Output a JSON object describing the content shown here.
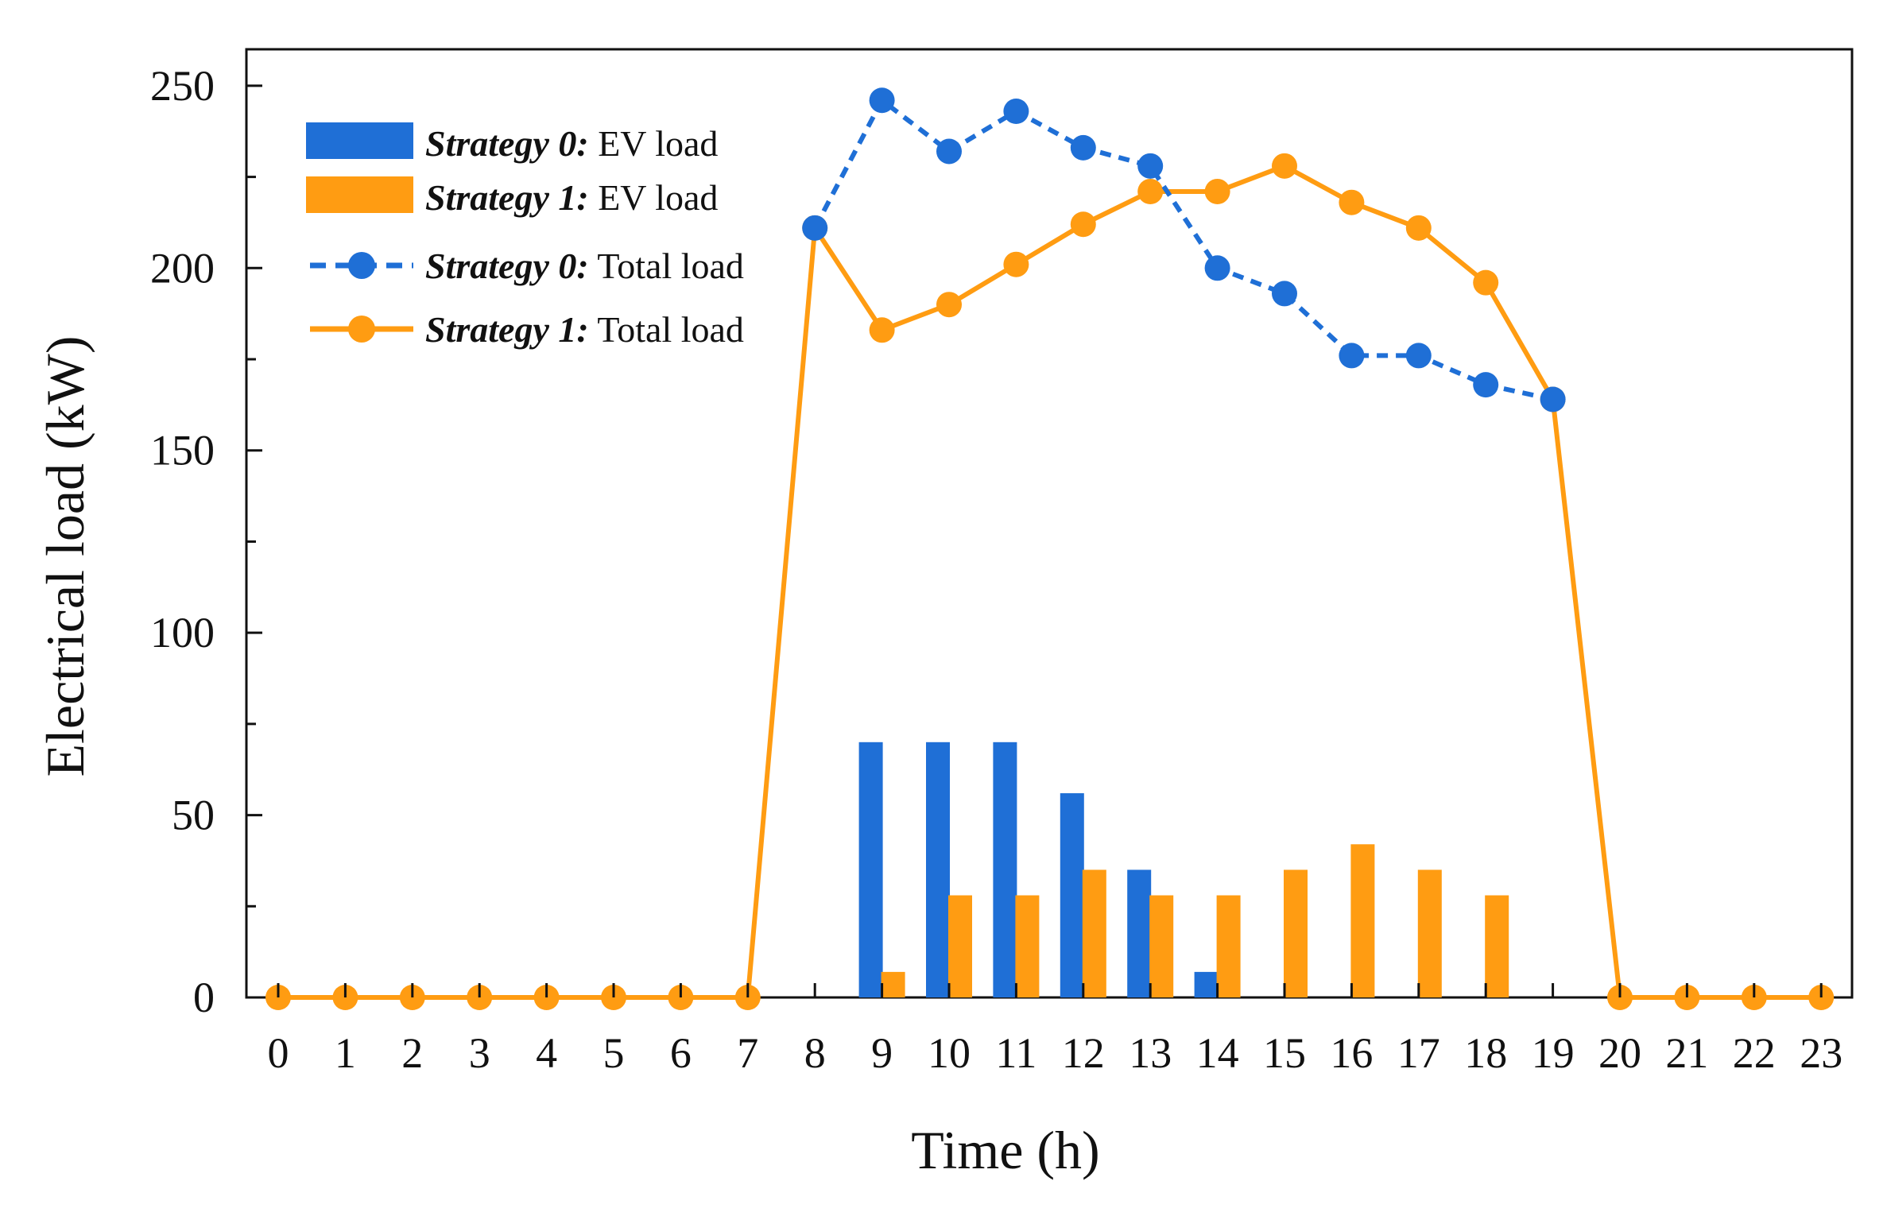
{
  "chart_data": {
    "type": "bar+line",
    "title": "",
    "xlabel": "Time (h)",
    "ylabel": "Electrical load (kW)",
    "ylim": [
      0,
      260
    ],
    "xlim": [
      -0.5,
      23.5
    ],
    "y_ticks": [
      0,
      50,
      100,
      150,
      200,
      250
    ],
    "categories": [
      "0",
      "1",
      "2",
      "3",
      "4",
      "5",
      "6",
      "7",
      "8",
      "9",
      "10",
      "11",
      "12",
      "13",
      "14",
      "15",
      "16",
      "17",
      "18",
      "19",
      "20",
      "21",
      "22",
      "23"
    ],
    "bar_series": [
      {
        "name": "Strategy 0: EV load",
        "legend_prefix": "Strategy 0:",
        "legend_suffix": "EV load",
        "color": "#1f6fd6",
        "values": [
          0,
          0,
          0,
          0,
          0,
          0,
          0,
          0,
          0,
          70,
          70,
          70,
          56,
          35,
          7,
          0,
          0,
          0,
          0,
          0,
          0,
          0,
          0,
          0
        ]
      },
      {
        "name": "Strategy 1: EV load",
        "legend_prefix": "Strategy 1:",
        "legend_suffix": "EV load",
        "color": "#ff9c12",
        "values": [
          0,
          0,
          0,
          0,
          0,
          0,
          0,
          0,
          0,
          7,
          28,
          28,
          35,
          28,
          28,
          35,
          42,
          35,
          28,
          0,
          0,
          0,
          0,
          0
        ]
      }
    ],
    "line_series": [
      {
        "name": "Strategy 0: Total load",
        "legend_prefix": "Strategy 0:",
        "legend_suffix": "Total load",
        "color": "#1f6fd6",
        "dashed": true,
        "x": [
          8,
          9,
          10,
          11,
          12,
          13,
          14,
          15,
          16,
          17,
          18,
          19
        ],
        "values": [
          211,
          246,
          232,
          243,
          233,
          228,
          200,
          193,
          176,
          176,
          168,
          164
        ]
      },
      {
        "name": "Strategy 1: Total load",
        "legend_prefix": "Strategy 1:",
        "legend_suffix": "Total load",
        "color": "#ff9c12",
        "dashed": false,
        "x": [
          0,
          1,
          2,
          3,
          4,
          5,
          6,
          7,
          8,
          9,
          10,
          11,
          12,
          13,
          14,
          15,
          16,
          17,
          18,
          19,
          20,
          21,
          22,
          23
        ],
        "values": [
          0,
          0,
          0,
          0,
          0,
          0,
          0,
          0,
          211,
          183,
          190,
          201,
          212,
          221,
          221,
          228,
          218,
          211,
          196,
          164,
          0,
          0,
          0,
          0
        ]
      }
    ],
    "legend_position": "top-left"
  }
}
